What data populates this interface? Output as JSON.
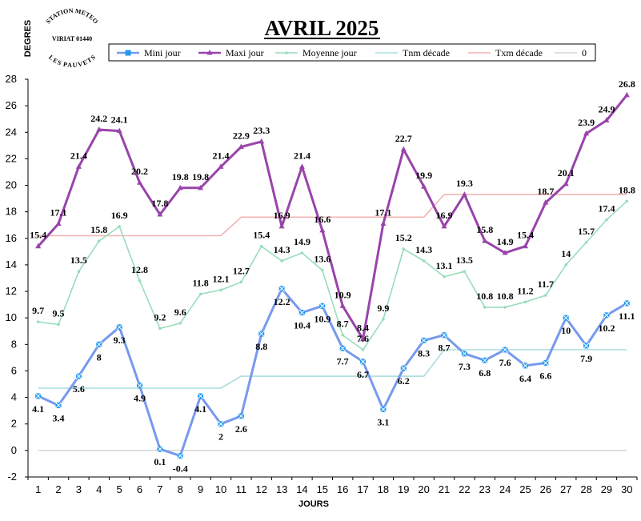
{
  "stamp": {
    "top_text": "STATION METEO",
    "middle_text": "VIRIAT 01440",
    "bottom_text": "LES PAUVETS"
  },
  "colors": {
    "mini": "#7799ee",
    "mini_marker": "#2299ee",
    "maxi": "#9944aa",
    "moyenne": "#99ddbb",
    "tnm": "#aadddd",
    "txm": "#f3b3b3",
    "zero": "#c0c0c0"
  },
  "chart_data": {
    "type": "line",
    "title": "AVRIL 2025",
    "xlabel": "JOURS",
    "ylabel": "DEGRES",
    "ylim": [
      -2,
      28
    ],
    "yticks": [
      -2,
      0,
      2,
      4,
      6,
      8,
      10,
      12,
      14,
      16,
      18,
      20,
      22,
      24,
      26,
      28
    ],
    "x": [
      1,
      2,
      3,
      4,
      5,
      6,
      7,
      8,
      9,
      10,
      11,
      12,
      13,
      14,
      15,
      16,
      17,
      18,
      19,
      20,
      21,
      22,
      23,
      24,
      25,
      26,
      27,
      28,
      29,
      30
    ],
    "series": [
      {
        "key": "mini",
        "name": "Mini jour",
        "labels": true,
        "values": [
          4.1,
          3.4,
          5.6,
          8,
          9.3,
          4.9,
          0.1,
          -0.4,
          4.1,
          2,
          2.6,
          8.8,
          12.2,
          10.4,
          10.9,
          7.7,
          6.7,
          3.1,
          6.2,
          8.3,
          8.7,
          7.3,
          6.8,
          7.6,
          6.4,
          6.6,
          10,
          7.9,
          10.2,
          11.1
        ]
      },
      {
        "key": "maxi",
        "name": "Maxi jour",
        "labels": true,
        "values": [
          15.4,
          17.1,
          21.4,
          24.2,
          24.1,
          20.2,
          17.8,
          19.8,
          19.8,
          21.4,
          22.9,
          23.3,
          16.9,
          21.4,
          16.6,
          10.9,
          8.4,
          17.1,
          22.7,
          19.9,
          16.9,
          19.3,
          15.8,
          14.9,
          15.4,
          18.7,
          20.1,
          23.9,
          24.9,
          26.8
        ]
      },
      {
        "key": "moyenne",
        "name": "Moyenne jour",
        "labels": true,
        "values": [
          9.7,
          9.5,
          13.5,
          15.8,
          16.9,
          12.8,
          9.2,
          9.6,
          11.8,
          12.1,
          12.7,
          15.4,
          14.3,
          14.9,
          13.6,
          8.7,
          7.6,
          9.9,
          15.2,
          14.3,
          13.1,
          13.5,
          10.8,
          10.8,
          11.2,
          11.7,
          14,
          15.7,
          17.4,
          18.8
        ]
      },
      {
        "key": "tnm",
        "name": "Tnm décade",
        "labels": false,
        "values": [
          4.7,
          4.7,
          4.7,
          4.7,
          4.7,
          4.7,
          4.7,
          4.7,
          4.7,
          4.7,
          5.6,
          5.6,
          5.6,
          5.6,
          5.6,
          5.6,
          5.6,
          5.6,
          5.6,
          5.6,
          7.6,
          7.6,
          7.6,
          7.6,
          7.6,
          7.6,
          7.6,
          7.6,
          7.6,
          7.6
        ]
      },
      {
        "key": "txm",
        "name": "Txm décade",
        "labels": false,
        "values": [
          16.2,
          16.2,
          16.2,
          16.2,
          16.2,
          16.2,
          16.2,
          16.2,
          16.2,
          16.2,
          17.6,
          17.6,
          17.6,
          17.6,
          17.6,
          17.6,
          17.6,
          17.6,
          17.6,
          17.6,
          19.3,
          19.3,
          19.3,
          19.3,
          19.3,
          19.3,
          19.3,
          19.3,
          19.3,
          19.3
        ]
      },
      {
        "key": "zero",
        "name": "0",
        "labels": false,
        "values": [
          0,
          0,
          0,
          0,
          0,
          0,
          0,
          0,
          0,
          0,
          0,
          0,
          0,
          0,
          0,
          0,
          0,
          0,
          0,
          0,
          0,
          0,
          0,
          0,
          0,
          0,
          0,
          0,
          0,
          0
        ]
      }
    ]
  }
}
